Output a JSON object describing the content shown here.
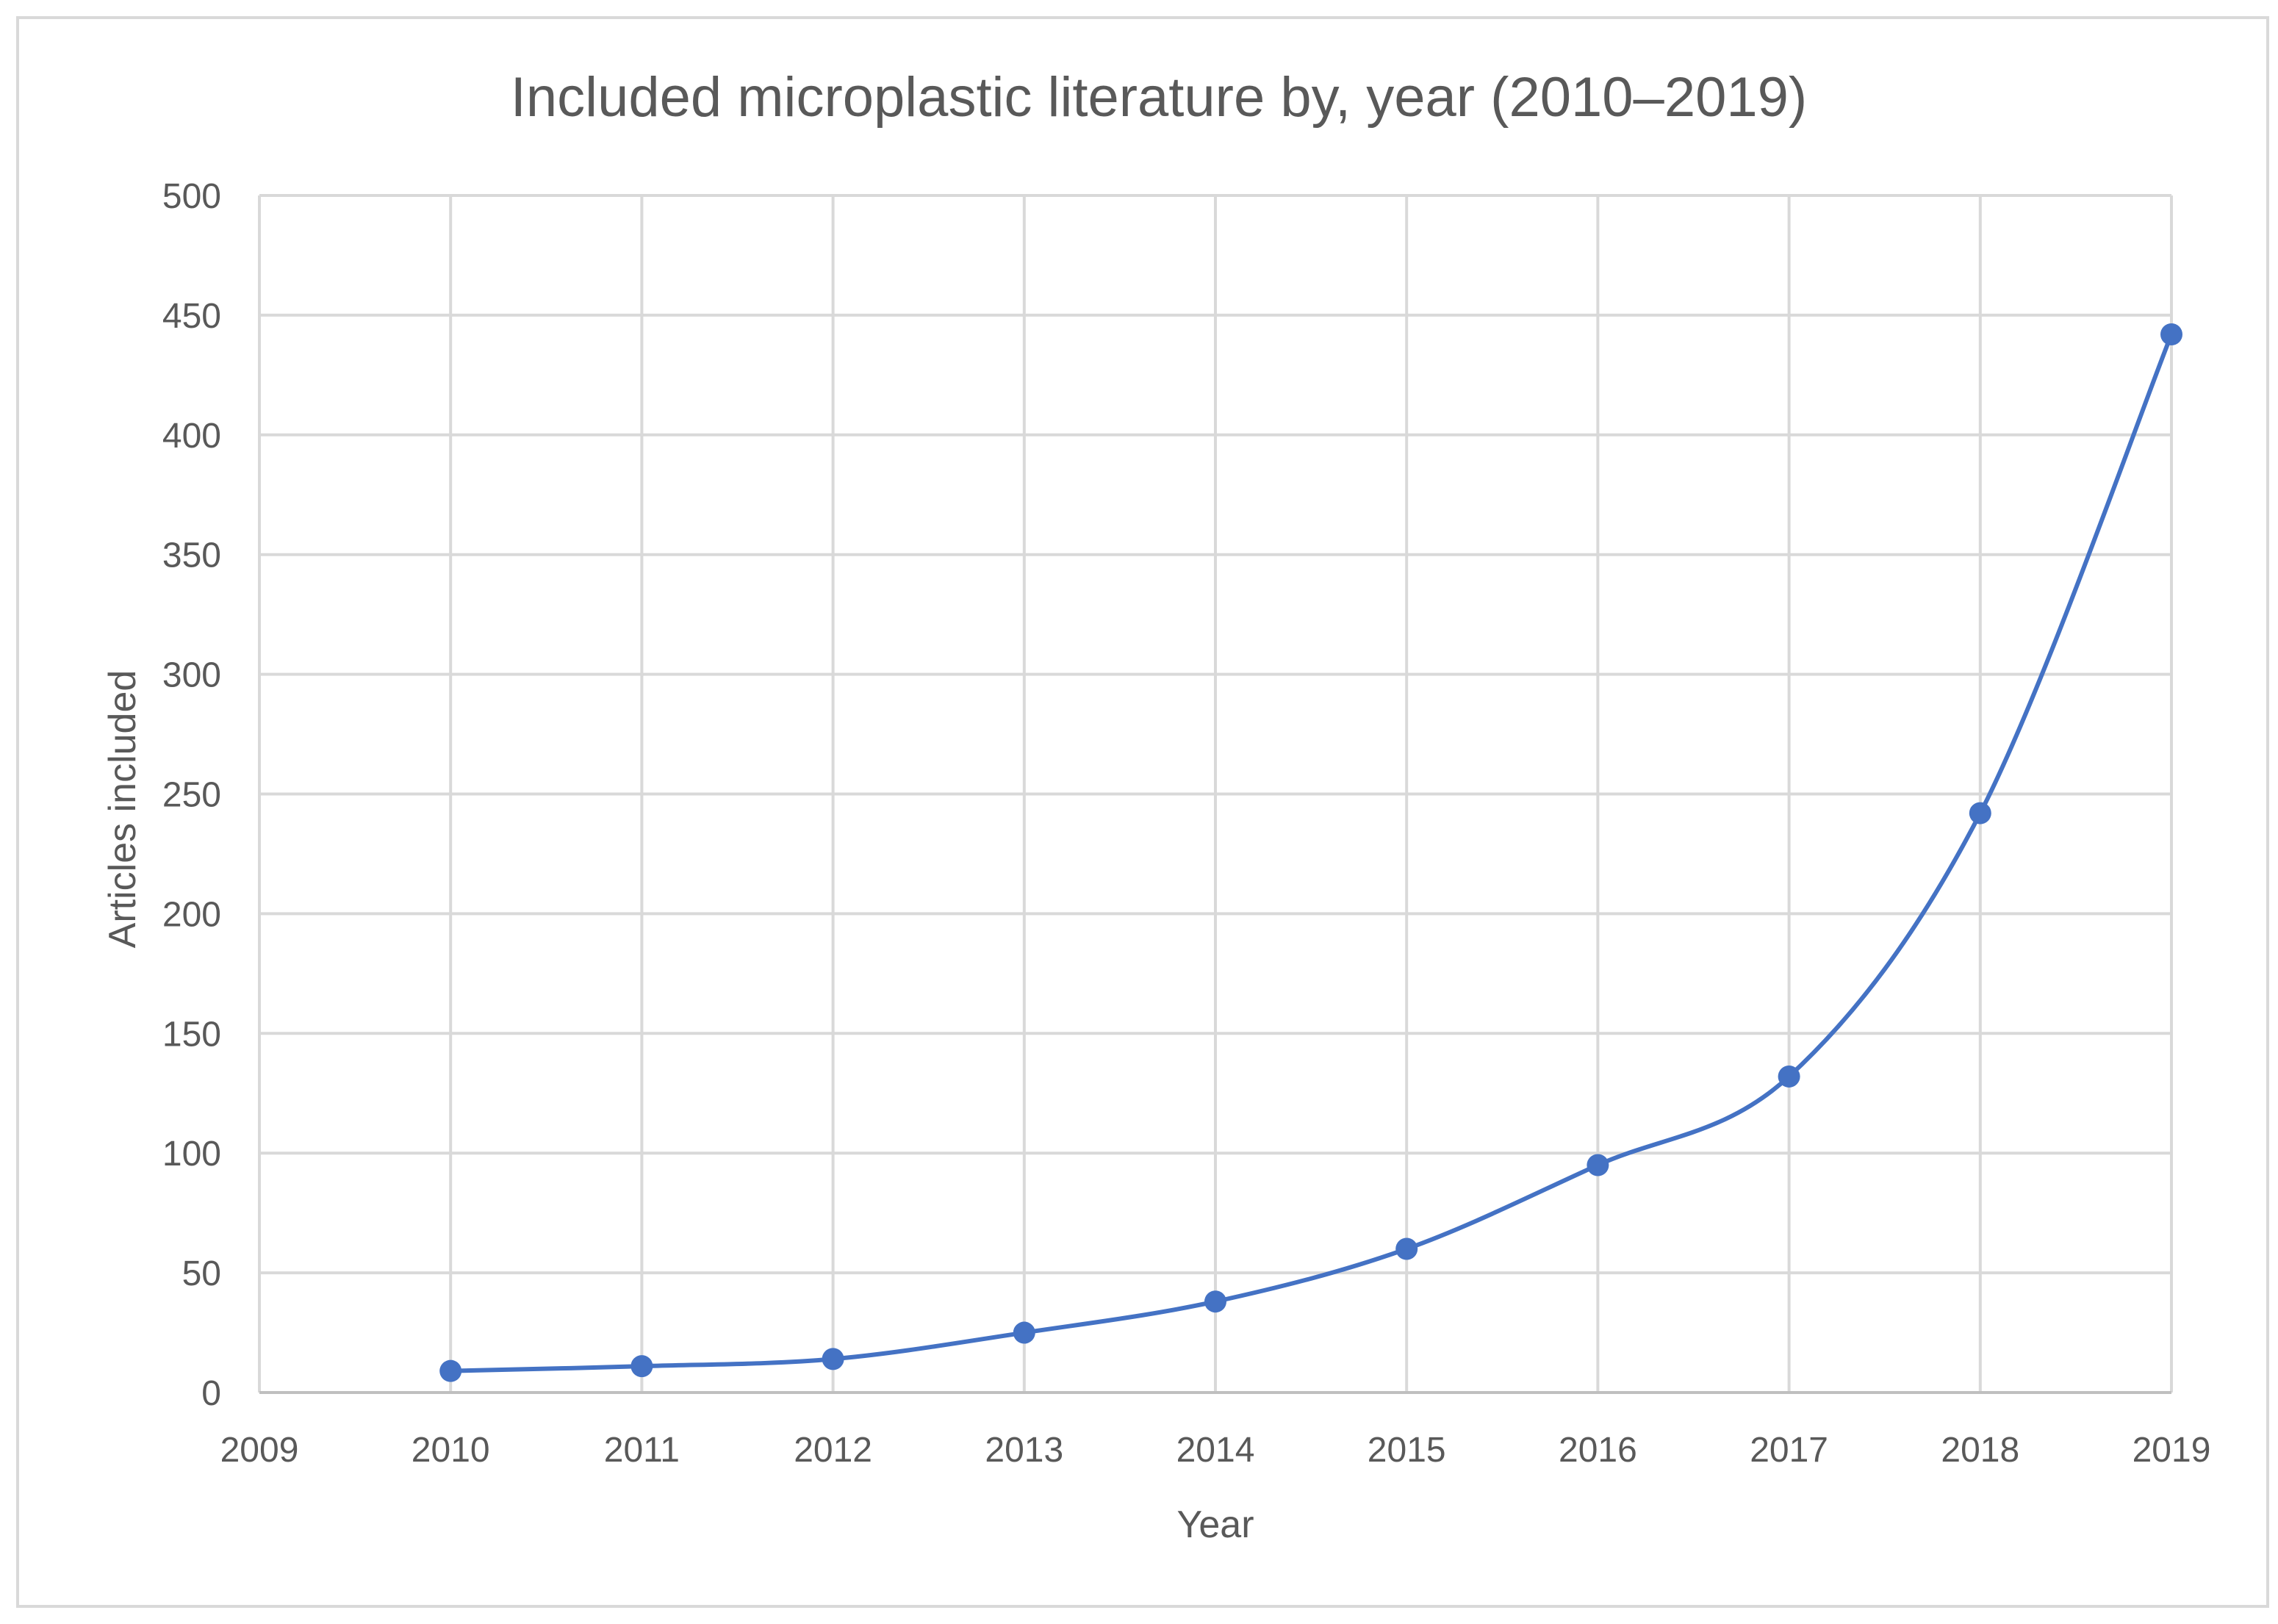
{
  "chart_data": {
    "type": "line",
    "title": "Included microplastic literature by, year (2010–2019)",
    "xlabel": "Year",
    "ylabel": "Articles included",
    "xlim": [
      2009,
      2019
    ],
    "ylim": [
      0,
      500
    ],
    "x_ticks": [
      "2009",
      "2010",
      "2011",
      "2012",
      "2013",
      "2014",
      "2015",
      "2016",
      "2017",
      "2018",
      "2019"
    ],
    "y_ticks": [
      "0",
      "50",
      "100",
      "150",
      "200",
      "250",
      "300",
      "350",
      "400",
      "450",
      "500"
    ],
    "grid": true,
    "legend": "none",
    "smoothed": true,
    "series": [
      {
        "name": "Articles included",
        "color": "#4472c4",
        "x": [
          2010,
          2011,
          2012,
          2013,
          2014,
          2015,
          2016,
          2017,
          2018,
          2019
        ],
        "y": [
          9,
          11,
          14,
          25,
          38,
          60,
          95,
          132,
          242,
          442
        ]
      }
    ]
  }
}
